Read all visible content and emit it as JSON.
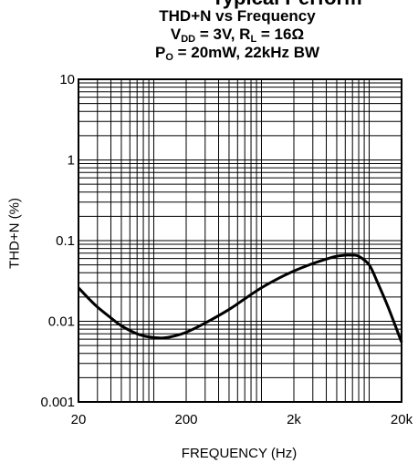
{
  "chart_data": {
    "type": "line",
    "title_cut": "Typical Perform",
    "title": "THD+N vs Frequency",
    "cond1": {
      "vdd_main": "V",
      "vdd_sub": "DD",
      "vdd_rest": " = 3V, R",
      "rl_sub": "L",
      "rl_rest": " = 16Ω"
    },
    "cond2": {
      "po_main": "P",
      "po_sub": "O",
      "po_rest": " = 20mW, 22kHz BW"
    },
    "xlabel": "FREQUENCY (Hz)",
    "ylabel": "THD+N (%)",
    "x_scale": "log",
    "y_scale": "log",
    "xlim": [
      20,
      20000
    ],
    "ylim": [
      0.001,
      10
    ],
    "x_ticks": [
      {
        "value": 20,
        "label": "20"
      },
      {
        "value": 200,
        "label": "200"
      },
      {
        "value": 2000,
        "label": "2k"
      },
      {
        "value": 20000,
        "label": "20k"
      }
    ],
    "y_ticks": [
      {
        "value": 10,
        "label": "10"
      },
      {
        "value": 1,
        "label": "1"
      },
      {
        "value": 0.1,
        "label": "0.1"
      },
      {
        "value": 0.01,
        "label": "0.01"
      },
      {
        "value": 0.001,
        "label": "0.001"
      }
    ],
    "grid": true,
    "series": [
      {
        "x": [
          20,
          25,
          30,
          40,
          50,
          70,
          90,
          120,
          150,
          200,
          300,
          500,
          700,
          1000,
          1500,
          2000,
          3000,
          4000,
          5000,
          6000,
          7000,
          8000,
          10000,
          12000,
          15000,
          20000
        ],
        "y": [
          0.026,
          0.019,
          0.015,
          0.011,
          0.0088,
          0.007,
          0.0064,
          0.0062,
          0.0065,
          0.0073,
          0.0095,
          0.014,
          0.019,
          0.026,
          0.035,
          0.042,
          0.052,
          0.059,
          0.064,
          0.066,
          0.066,
          0.064,
          0.05,
          0.03,
          0.015,
          0.0055
        ]
      }
    ]
  }
}
